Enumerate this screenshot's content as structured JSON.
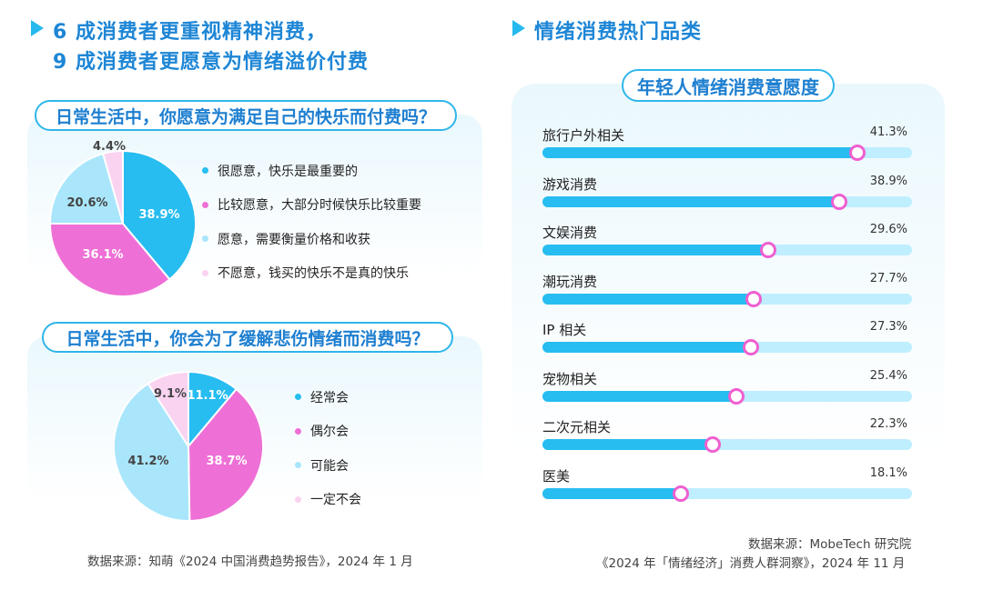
{
  "left": {
    "heading_line1": "6 成消费者更重视精神消费，",
    "heading_line2": "9 成消费者更愿意为情绪溢价付费",
    "q1": "日常生活中，你愿意为满足自己的快乐而付费吗？",
    "q2": "日常生活中，你会为了缓解悲伤情绪而消费吗？",
    "source": "数据来源：知萌《2024 中国消费趋势报告》，2024 年 1 月"
  },
  "right": {
    "heading": "情绪消费热门品类",
    "subtitle": "年轻人情绪消费意愿度",
    "source_line1": "数据来源：MobeTech 研究院",
    "source_line2": "《2024 年「情绪经济」消费人群洞察》，2024 年 11 月"
  },
  "colors": {
    "blue": "#27bdf0",
    "pink": "#ee70d6",
    "light_blue": "#a9e6fb",
    "light_pink": "#fad3f1",
    "heading": "#1e86d6"
  },
  "chart_data": [
    {
      "type": "pie",
      "title": "日常生活中，你愿意为满足自己的快乐而付费吗？",
      "slices": [
        {
          "label": "很愿意，快乐是最重要的",
          "value": 38.9,
          "display": "38.9%",
          "color": "#27bdf0"
        },
        {
          "label": "比较愿意，大部分时候快乐比较重要",
          "value": 36.1,
          "display": "36.1%",
          "color": "#ee70d6"
        },
        {
          "label": "愿意，需要衡量价格和收获",
          "value": 20.6,
          "display": "20.6%",
          "color": "#a9e6fb"
        },
        {
          "label": "不愿意，钱买的快乐不是真的快乐",
          "value": 4.4,
          "display": "4.4%",
          "color": "#fad3f1"
        }
      ]
    },
    {
      "type": "pie",
      "title": "日常生活中，你会为了缓解悲伤情绪而消费吗？",
      "slices": [
        {
          "label": "经常会",
          "value": 11.1,
          "display": "11.1%",
          "color": "#27bdf0"
        },
        {
          "label": "偶尔会",
          "value": 38.7,
          "display": "38.7%",
          "color": "#ee70d6"
        },
        {
          "label": "可能会",
          "value": 41.2,
          "display": "41.2%",
          "color": "#a9e6fb"
        },
        {
          "label": "一定不会",
          "value": 9.1,
          "display": "9.1%",
          "color": "#fad3f1"
        }
      ]
    },
    {
      "type": "bar",
      "title": "年轻人情绪消费意愿度",
      "categories": [
        "旅行户外相关",
        "游戏消费",
        "文娱消费",
        "潮玩消费",
        "IP 相关",
        "宠物相关",
        "二次元相关",
        "医美"
      ],
      "values": [
        41.3,
        38.9,
        29.6,
        27.7,
        27.3,
        25.4,
        22.3,
        18.1
      ],
      "display": [
        "41.3%",
        "38.9%",
        "29.6%",
        "27.7%",
        "27.3%",
        "25.4%",
        "22.3%",
        "18.1%"
      ],
      "xlim": [
        0,
        48.5
      ]
    }
  ]
}
